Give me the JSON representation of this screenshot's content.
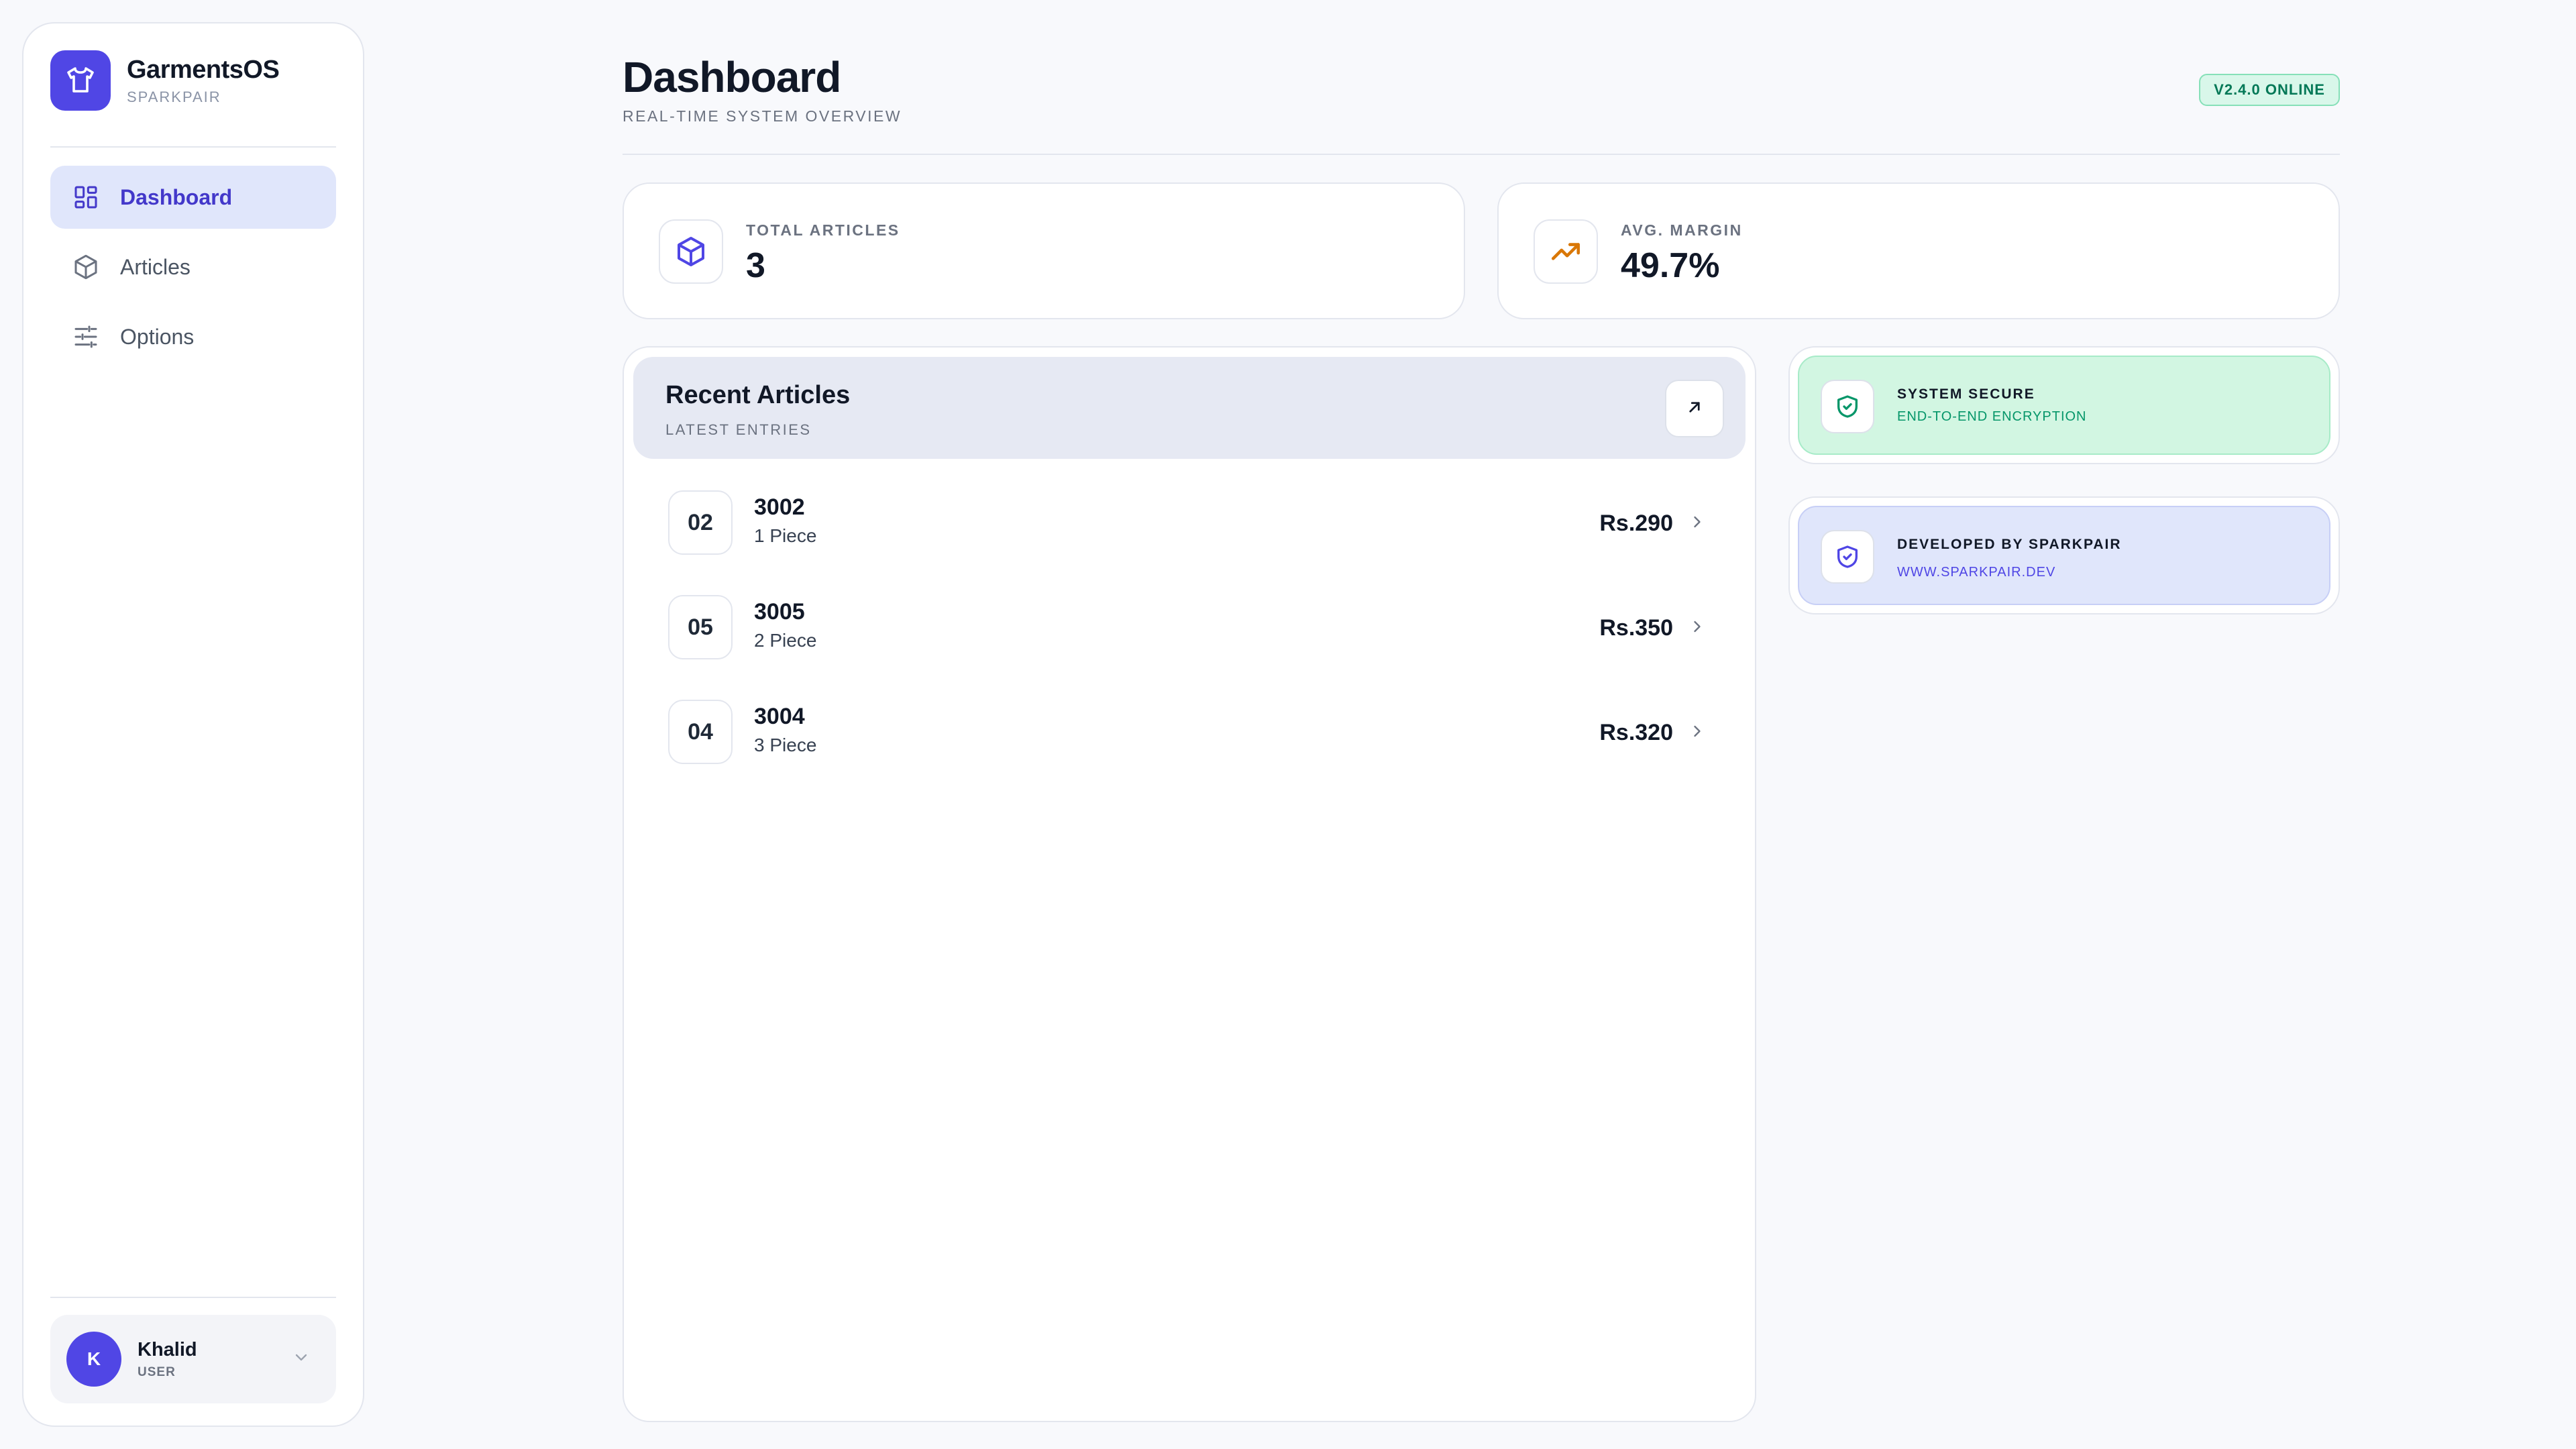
{
  "brand": {
    "name": "GarmentsOS",
    "subtitle": "SPARKPAIR"
  },
  "sidebar": {
    "items": [
      {
        "label": "Dashboard",
        "icon": "dashboard-icon",
        "active": true
      },
      {
        "label": "Articles",
        "icon": "box-icon",
        "active": false
      },
      {
        "label": "Options",
        "icon": "sliders-icon",
        "active": false
      }
    ]
  },
  "user": {
    "initial": "K",
    "name": "Khalid",
    "role": "USER"
  },
  "header": {
    "title": "Dashboard",
    "subtitle": "REAL-TIME SYSTEM OVERVIEW",
    "version_badge": "V2.4.0 ONLINE"
  },
  "stats": [
    {
      "label": "TOTAL ARTICLES",
      "value": "3",
      "icon": "box-icon",
      "accent": "#4f46e5"
    },
    {
      "label": "AVG. MARGIN",
      "value": "49.7%",
      "icon": "trending-up-icon",
      "accent": "#d97706"
    }
  ],
  "recent_articles": {
    "title": "Recent Articles",
    "subtitle": "LATEST ENTRIES",
    "rows": [
      {
        "num": "02",
        "code": "3002",
        "type": "1 Piece",
        "price": "Rs.290"
      },
      {
        "num": "05",
        "code": "3005",
        "type": "2 Piece",
        "price": "Rs.350"
      },
      {
        "num": "04",
        "code": "3004",
        "type": "3 Piece",
        "price": "Rs.320"
      }
    ]
  },
  "info_cards": {
    "secure": {
      "title": "SYSTEM SECURE",
      "subtitle": "END-TO-END ENCRYPTION",
      "color": "#059669"
    },
    "developer": {
      "title": "DEVELOPED BY SPARKPAIR",
      "subtitle": "WWW.SPARKPAIR.DEV",
      "color": "#4f46e5"
    }
  },
  "colors": {
    "accent": "#5046e5",
    "success": "#059669",
    "background": "#f8f9fc"
  }
}
